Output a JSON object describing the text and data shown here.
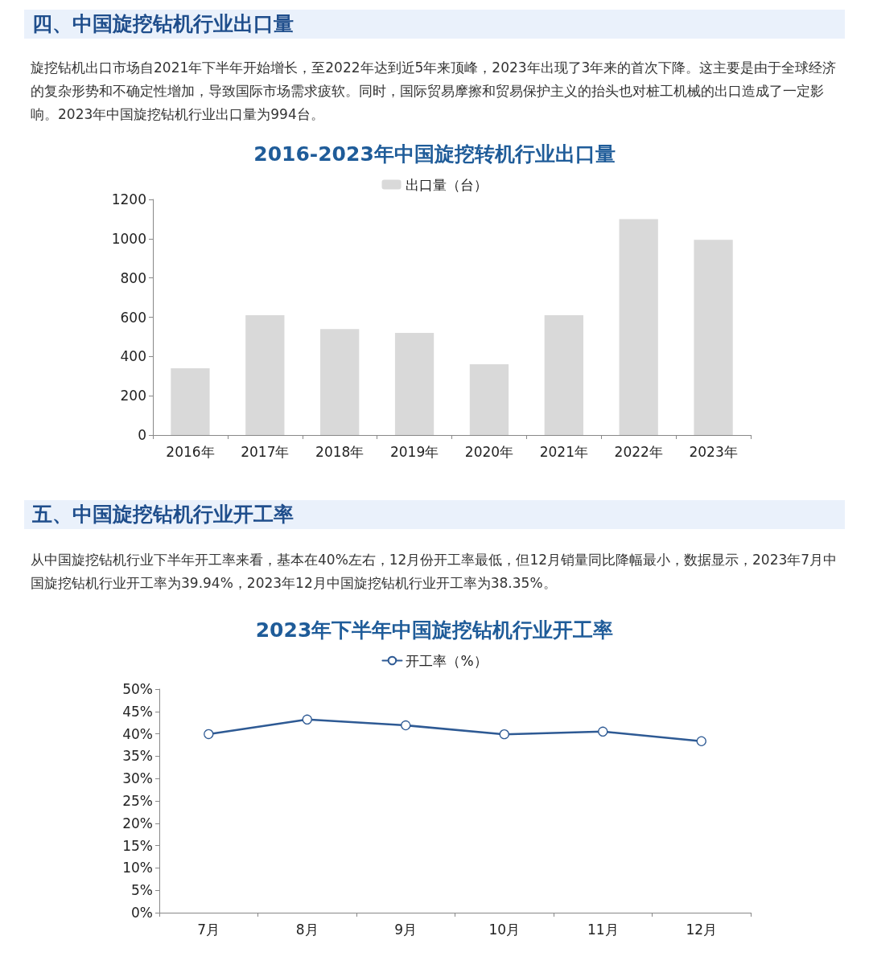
{
  "chart_data": [
    {
      "type": "bar",
      "title": "2016-2023年中国旋挖转机行业出口量",
      "annotations": [
        "四、中国旋挖钻机行业出口量",
        "旋挖钻机出口市场自2021年下半年开始增长，至2022年达到近5年来顶峰，2023年出现了3年来的首次下降。这主要是由于全球经济的复杂形势和不确定性增加，导致国际市场需求疲软。同时，国际贸易摩擦和贸易保护主义的抬头也对桩工机械的出口造成了一定影响。2023年中国旋挖钻机行业出口量为994台。"
      ],
      "categories": [
        "2016年",
        "2017年",
        "2018年",
        "2019年",
        "2020年",
        "2021年",
        "2022年",
        "2023年"
      ],
      "series": [
        {
          "name": "出口量（台）",
          "color": "#d9d9d9",
          "values": [
            340,
            610,
            540,
            520,
            360,
            610,
            1100,
            994
          ]
        }
      ],
      "ylim": [
        0,
        1200
      ],
      "yticks": [
        0,
        200,
        400,
        600,
        800,
        1000,
        1200
      ],
      "grid": false,
      "legend": "top"
    },
    {
      "type": "line",
      "title": "2023年下半年中国旋挖钻机行业开工率",
      "annotations": [
        "五、中国旋挖钻机行业开工率",
        "从中国旋挖钻机行业下半年开工率来看，基本在40%左右，12月份开工率最低，但12月销量同比降幅最小，数据显示，2023年7月中国旋挖钻机行业开工率为39.94%，2023年12月中国旋挖钻机行业开工率为38.35%。"
      ],
      "categories": [
        "7月",
        "8月",
        "9月",
        "10月",
        "11月",
        "12月"
      ],
      "series": [
        {
          "name": "开工率（%）",
          "color": "#2e5a94",
          "values": [
            39.94,
            43.2,
            41.9,
            39.9,
            40.5,
            38.35
          ]
        }
      ],
      "ylim": [
        0,
        50
      ],
      "yticks": [
        {
          "value": 0,
          "label": "0%"
        },
        {
          "value": 5,
          "label": "5%"
        },
        {
          "value": 10,
          "label": "10%"
        },
        {
          "value": 15,
          "label": "15%"
        },
        {
          "value": 20,
          "label": "20%"
        },
        {
          "value": 25,
          "label": "25%"
        },
        {
          "value": 30,
          "label": "30%"
        },
        {
          "value": 35,
          "label": "35%"
        },
        {
          "value": 40,
          "label": "40%"
        },
        {
          "value": 45,
          "label": "45%"
        },
        {
          "value": 50,
          "label": "50%"
        }
      ],
      "grid": false,
      "legend": "top",
      "marker": "circle",
      "line_style": "solid"
    }
  ]
}
